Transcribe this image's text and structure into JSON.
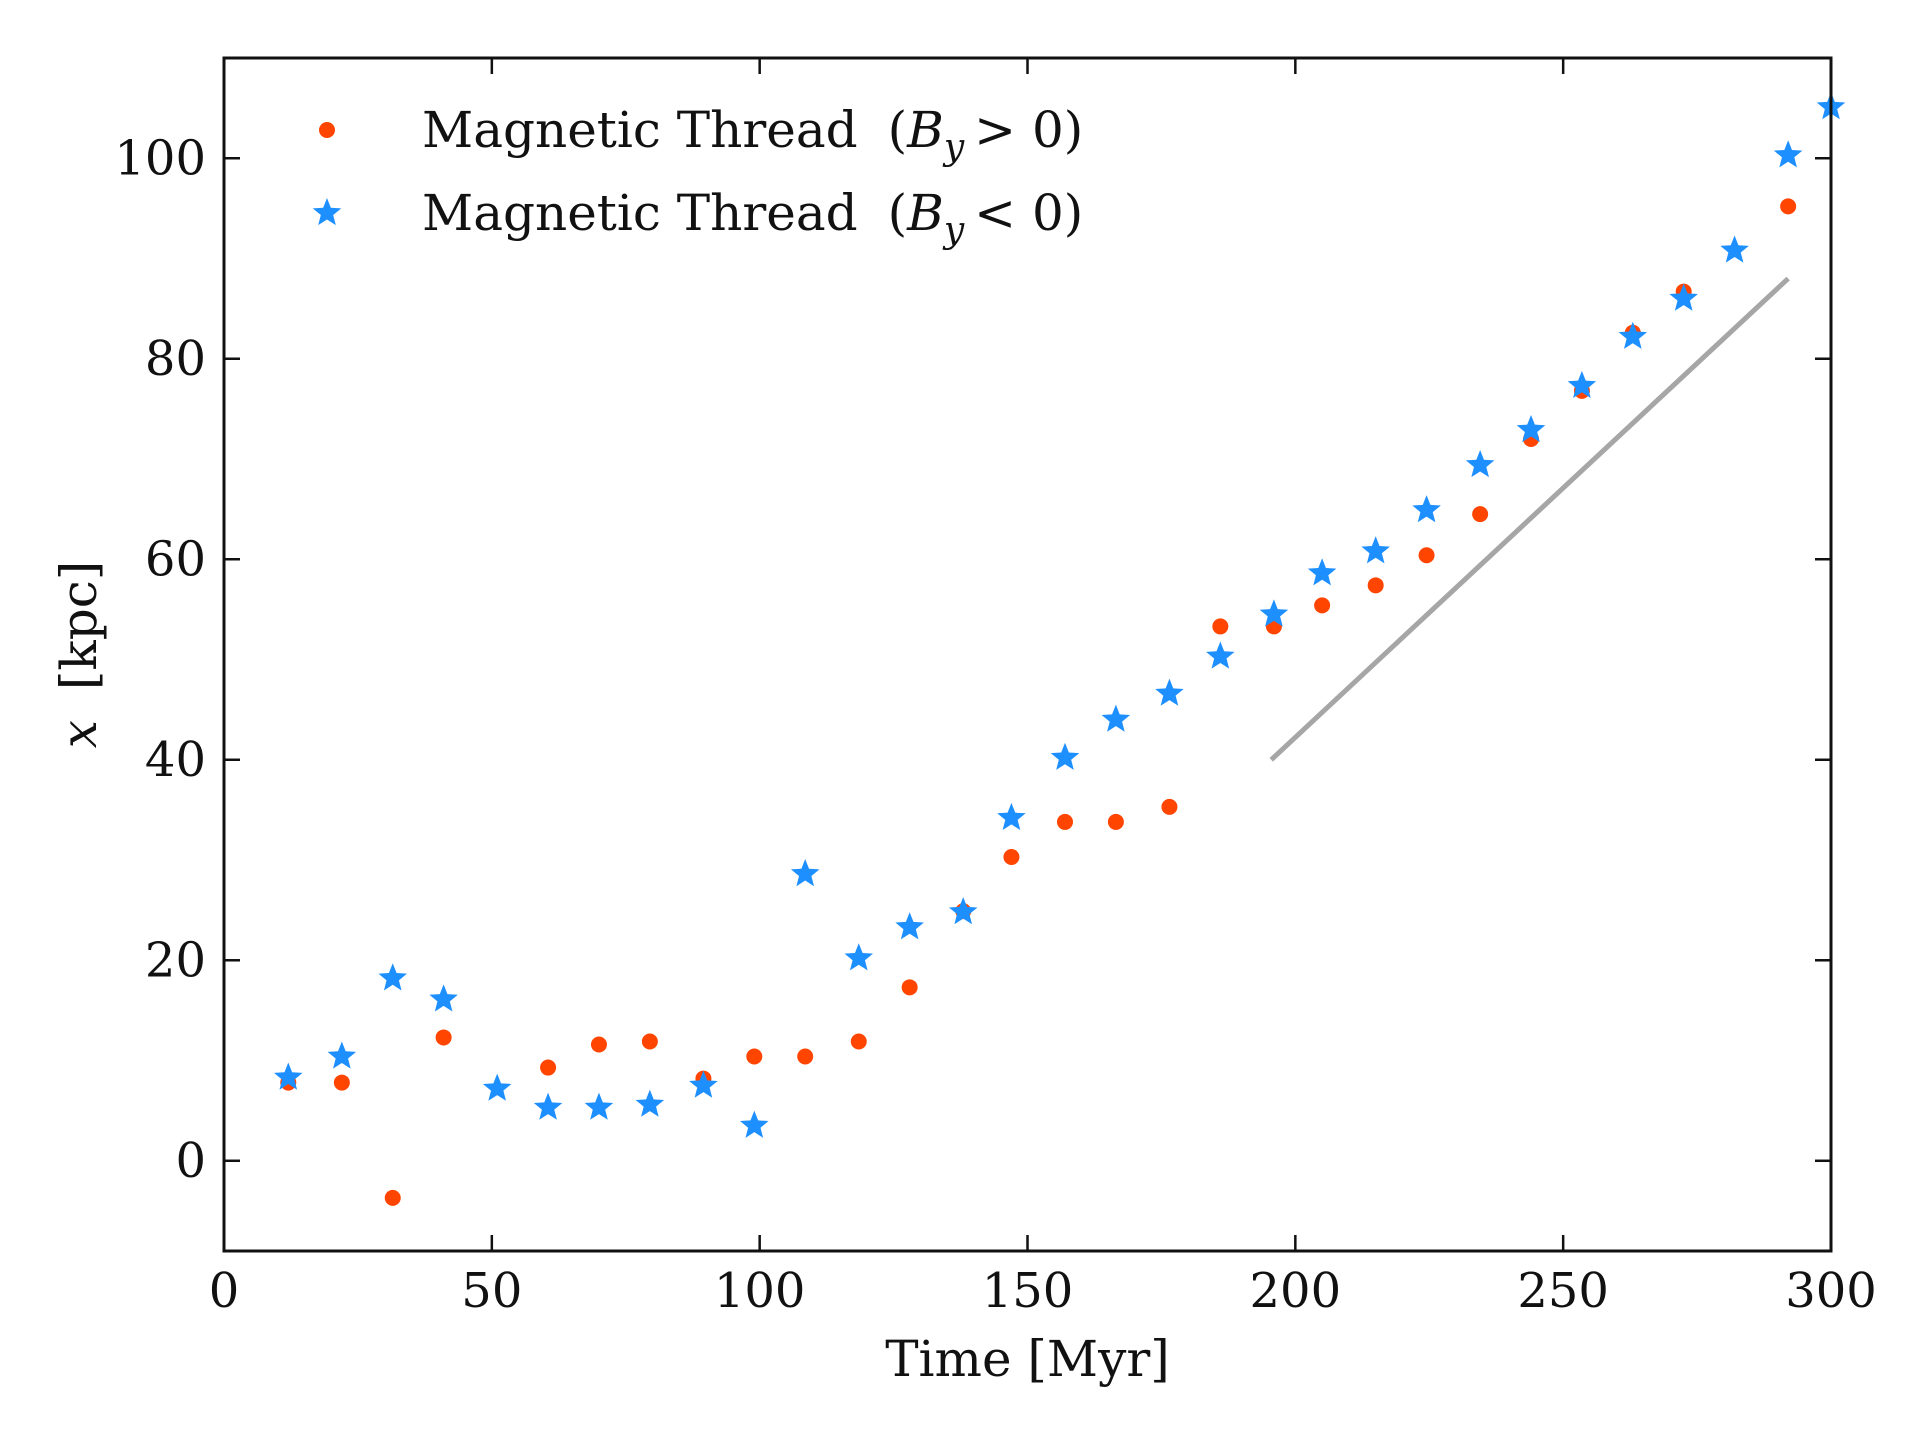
{
  "chart_data": {
    "type": "scatter",
    "title": "",
    "xlabel": "Time [Myr]",
    "ylabel_var": "x",
    "ylabel_unit": "[kpc]",
    "xlim": [
      0,
      300
    ],
    "ylim": [
      -9,
      110
    ],
    "xticks": [
      0,
      50,
      100,
      150,
      200,
      250,
      300
    ],
    "yticks": [
      0,
      20,
      40,
      60,
      80,
      100
    ],
    "grid": false,
    "legend_position": "top-left",
    "series": [
      {
        "name": "Magnetic Thread",
        "condition_symbol": "B",
        "condition_sub": "y",
        "condition_rel": "> 0",
        "marker": "circle",
        "color": "#ff4500",
        "x": [
          12,
          22,
          31.5,
          41,
          60.5,
          70,
          79.5,
          89.5,
          99,
          108.5,
          118.5,
          128,
          138,
          147,
          157,
          166.5,
          176.5,
          186,
          196,
          205,
          215,
          224.5,
          234.5,
          244,
          253.5,
          263,
          272.5,
          292
        ],
        "y": [
          7.8,
          7.8,
          -3.7,
          12.3,
          9.3,
          11.6,
          11.9,
          8.2,
          10.4,
          10.4,
          11.9,
          17.3,
          24.9,
          30.3,
          33.8,
          33.8,
          35.3,
          53.3,
          53.3,
          55.4,
          57.4,
          60.4,
          64.5,
          72.0,
          76.8,
          82.6,
          86.7,
          95.2
        ]
      },
      {
        "name": "Magnetic Thread",
        "condition_symbol": "B",
        "condition_sub": "y",
        "condition_rel": "< 0",
        "marker": "star",
        "color": "#1e8fff",
        "x": [
          12,
          22,
          31.5,
          41,
          51,
          60.5,
          70,
          79.5,
          89.5,
          99,
          108.5,
          118.5,
          128,
          138,
          147,
          157,
          166.5,
          176.5,
          186,
          196,
          205,
          215,
          224.5,
          234.5,
          244,
          253.5,
          263,
          272.5,
          282,
          292,
          300
        ],
        "y": [
          8.3,
          10.4,
          18.2,
          16.1,
          7.2,
          5.3,
          5.3,
          5.6,
          7.5,
          3.5,
          28.6,
          20.2,
          23.3,
          24.8,
          34.2,
          40.2,
          44.0,
          46.6,
          50.3,
          54.5,
          58.6,
          60.8,
          64.9,
          69.4,
          72.9,
          77.3,
          82.2,
          86.0,
          90.8,
          100.3,
          105.1
        ]
      }
    ],
    "reference_line": {
      "color": "#a6a6a6",
      "x": [
        195.5,
        292
      ],
      "y": [
        40,
        88
      ]
    }
  }
}
